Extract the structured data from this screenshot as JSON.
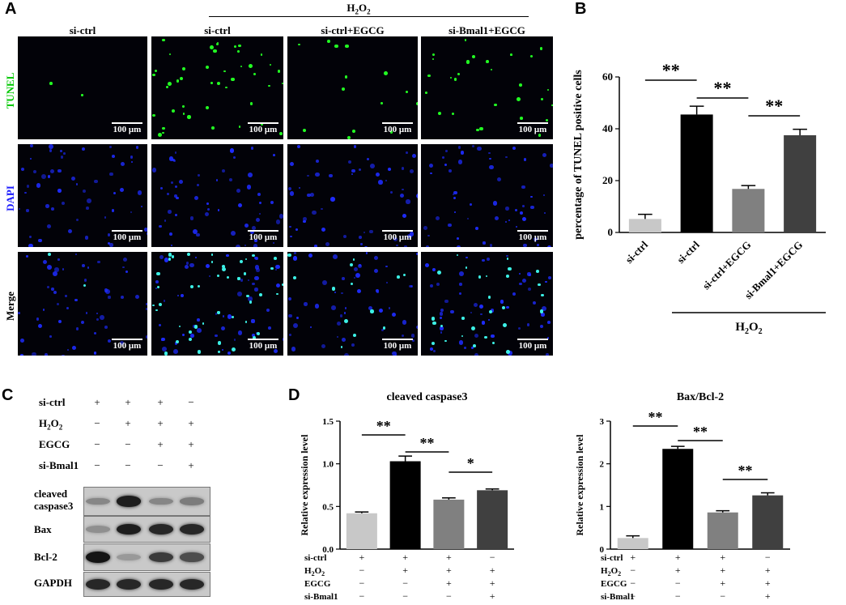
{
  "panels": {
    "a": "A",
    "b": "B",
    "c": "C",
    "d": "D"
  },
  "panel_a": {
    "h2o2_prefix": "H",
    "h2o2_sub": "2",
    "h2o2_suffix": "O",
    "h2o2_sub2": "2",
    "columns": [
      "si-ctrl",
      "si-ctrl",
      "si-ctrl+EGCG",
      "si-Bmal1+EGCG"
    ],
    "rows": [
      {
        "label": "TUNEL",
        "color": "#00c800"
      },
      {
        "label": "DAPI",
        "color": "#1a1aff"
      },
      {
        "label": "Merge",
        "color": "#000000"
      }
    ],
    "scale_bar": "100 μm"
  },
  "chart_data": [
    {
      "type": "bar",
      "panel": "B",
      "ylabel": "percentage of TUNEL positive cells",
      "categories": [
        "si-ctrl",
        "si-ctrl",
        "si-ctrl+EGCG",
        "si-Bmal1+EGCG"
      ],
      "values": [
        5.2,
        45.5,
        16.8,
        37.5
      ],
      "errors": [
        1.8,
        3.2,
        1.3,
        2.3
      ],
      "colors": [
        "#c8c8c8",
        "#000000",
        "#808080",
        "#404040"
      ],
      "ylim": [
        0,
        60
      ],
      "yticks": [
        0,
        20,
        40,
        60
      ],
      "significance": [
        "**",
        "**",
        "**"
      ],
      "group_label": "H2O2"
    },
    {
      "type": "bar",
      "panel": "D1",
      "title": "cleaved caspase3",
      "ylabel": "Relative expression level",
      "values": [
        0.42,
        1.03,
        0.58,
        0.69
      ],
      "errors": [
        0.015,
        0.06,
        0.02,
        0.015
      ],
      "colors": [
        "#c8c8c8",
        "#000000",
        "#808080",
        "#404040"
      ],
      "ylim": [
        0,
        1.5
      ],
      "yticks": [
        "0.0",
        "0.5",
        "1.0",
        "1.5"
      ],
      "significance": [
        "**",
        "**",
        "*"
      ]
    },
    {
      "type": "bar",
      "panel": "D2",
      "title": "Bax/Bcl-2",
      "ylabel": "Relative expression level",
      "values": [
        0.26,
        2.35,
        0.86,
        1.26
      ],
      "errors": [
        0.05,
        0.06,
        0.04,
        0.06
      ],
      "colors": [
        "#c8c8c8",
        "#000000",
        "#808080",
        "#404040"
      ],
      "ylim": [
        0,
        3
      ],
      "yticks": [
        "0",
        "1",
        "2",
        "3"
      ],
      "significance": [
        "**",
        "**",
        "**"
      ]
    }
  ],
  "treatment_table": {
    "rows": [
      {
        "label": "si-ctrl",
        "signs": [
          "+",
          "+",
          "+",
          "−"
        ]
      },
      {
        "label": "H2O2",
        "signs": [
          "−",
          "+",
          "+",
          "+"
        ]
      },
      {
        "label": "EGCG",
        "signs": [
          "−",
          "−",
          "+",
          "+"
        ]
      },
      {
        "label": "si-Bmal1",
        "signs": [
          "−",
          "−",
          "−",
          "+"
        ]
      }
    ]
  },
  "western_blot": {
    "bands": [
      {
        "label": "cleaved caspase3",
        "intensity": [
          0.35,
          0.9,
          0.35,
          0.4
        ]
      },
      {
        "label": "Bax",
        "intensity": [
          0.3,
          0.9,
          0.85,
          0.85
        ]
      },
      {
        "label": "Bcl-2",
        "intensity": [
          0.95,
          0.25,
          0.75,
          0.65
        ]
      },
      {
        "label": "GAPDH",
        "intensity": [
          0.85,
          0.85,
          0.85,
          0.85
        ]
      }
    ]
  }
}
